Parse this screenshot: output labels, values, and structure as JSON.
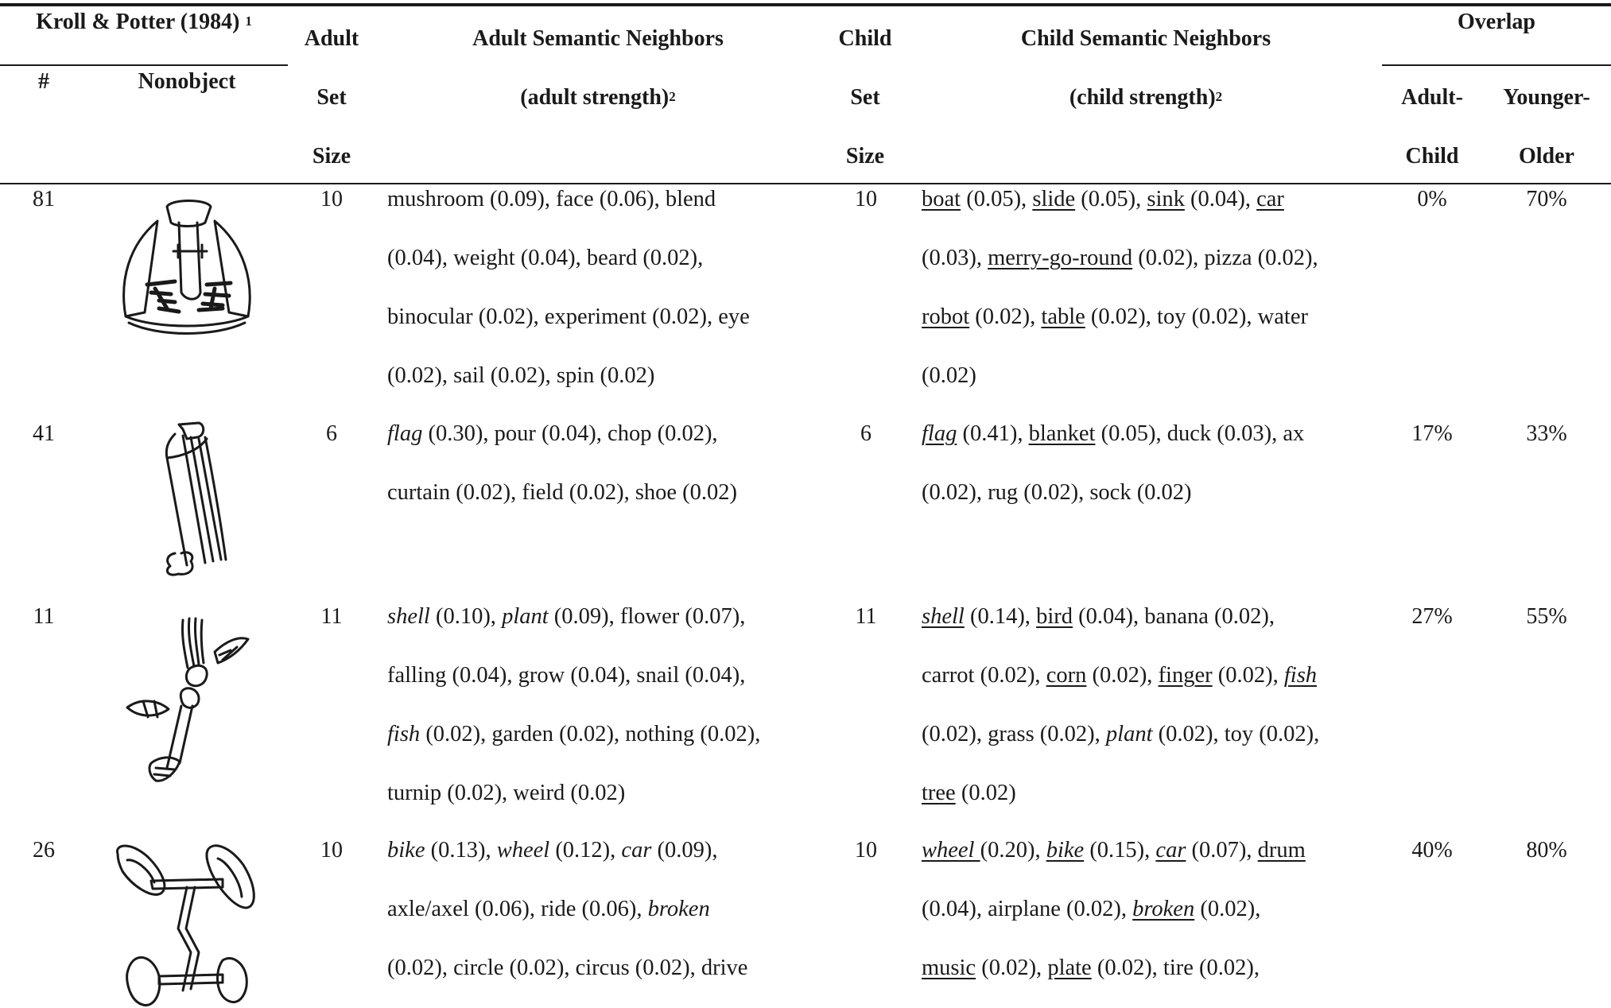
{
  "header": {
    "group_label": "Kroll & Potter (1984)",
    "group_note": "1",
    "num": "#",
    "nonobject": "Nonobject",
    "adult_set_1": "Adult",
    "adult_set_2": "Set",
    "adult_set_3": "Size",
    "adult_neighbors_1": "Adult Semantic Neighbors",
    "adult_neighbors_2": "(adult strength)",
    "adult_neighbors_note": "2",
    "child_set_1": "Child",
    "child_set_2": "Set",
    "child_set_3": "Size",
    "child_neighbors_1": "Child Semantic Neighbors",
    "child_neighbors_2": "(child strength)",
    "child_neighbors_note": "2",
    "overlap": "Overlap",
    "adult_child_1": "Adult-",
    "adult_child_2": "Child",
    "younger_older_1": "Younger-",
    "younger_older_2": "Older"
  },
  "rows": [
    {
      "num": "81",
      "image": "nonobject-81-drawing",
      "adult_set": "10",
      "child_set": "10",
      "overlap_ac": "0%",
      "overlap_yo": "70%",
      "adult_lines": [
        [
          {
            "t": "mushroom (0.09), face (0.06), blend"
          }
        ],
        [
          {
            "t": "(0.04), weight (0.04), beard (0.02),"
          }
        ],
        [
          {
            "t": "binocular (0.02), experiment (0.02), eye"
          }
        ],
        [
          {
            "t": "(0.02), sail (0.02), spin (0.02)"
          }
        ]
      ],
      "child_lines": [
        [
          {
            "t": "boat",
            "u": true
          },
          {
            "t": " (0.05), "
          },
          {
            "t": "slide",
            "u": true
          },
          {
            "t": " (0.05), "
          },
          {
            "t": "sink",
            "u": true
          },
          {
            "t": " (0.04), "
          },
          {
            "t": "car",
            "u": true
          }
        ],
        [
          {
            "t": "(0.03), "
          },
          {
            "t": "merry-go-round",
            "u": true
          },
          {
            "t": " (0.02), pizza (0.02),"
          }
        ],
        [
          {
            "t": "robot",
            "u": true
          },
          {
            "t": " (0.02), "
          },
          {
            "t": "table",
            "u": true
          },
          {
            "t": " (0.02), toy (0.02), water"
          }
        ],
        [
          {
            "t": "(0.02)"
          }
        ]
      ]
    },
    {
      "num": "41",
      "image": "nonobject-41-drawing",
      "adult_set": "6",
      "child_set": "6",
      "overlap_ac": "17%",
      "overlap_yo": "33%",
      "adult_lines": [
        [
          {
            "t": "flag",
            "i": true
          },
          {
            "t": " (0.30), pour (0.04), chop (0.02),"
          }
        ],
        [
          {
            "t": "curtain (0.02), field (0.02), shoe (0.02)"
          }
        ]
      ],
      "child_lines": [
        [
          {
            "t": "flag",
            "u": true,
            "i": true
          },
          {
            "t": " (0.41), "
          },
          {
            "t": "blanket",
            "u": true
          },
          {
            "t": " (0.05), duck (0.03), ax"
          }
        ],
        [
          {
            "t": "(0.02), rug (0.02), sock (0.02)"
          }
        ]
      ]
    },
    {
      "num": "11",
      "image": "nonobject-11-drawing",
      "adult_set": "11",
      "child_set": "11",
      "overlap_ac": "27%",
      "overlap_yo": "55%",
      "adult_lines": [
        [
          {
            "t": "shell",
            "i": true
          },
          {
            "t": " (0.10), "
          },
          {
            "t": "plant",
            "i": true
          },
          {
            "t": " (0.09), flower (0.07),"
          }
        ],
        [
          {
            "t": "falling (0.04), grow (0.04), snail (0.04),"
          }
        ],
        [
          {
            "t": "fish",
            "i": true
          },
          {
            "t": " (0.02), garden (0.02), nothing (0.02),"
          }
        ],
        [
          {
            "t": "turnip (0.02), weird (0.02)"
          }
        ]
      ],
      "child_lines": [
        [
          {
            "t": "shell",
            "u": true,
            "i": true
          },
          {
            "t": " (0.14), "
          },
          {
            "t": "bird",
            "u": true
          },
          {
            "t": " (0.04), banana (0.02),"
          }
        ],
        [
          {
            "t": "carrot (0.02), "
          },
          {
            "t": "corn",
            "u": true
          },
          {
            "t": " (0.02), "
          },
          {
            "t": "finger",
            "u": true
          },
          {
            "t": " (0.02), "
          },
          {
            "t": "fish",
            "u": true,
            "i": true
          }
        ],
        [
          {
            "t": "(0.02), grass (0.02), "
          },
          {
            "t": "plant",
            "i": true
          },
          {
            "t": " (0.02), toy (0.02),"
          }
        ],
        [
          {
            "t": "tree",
            "u": true
          },
          {
            "t": " (0.02)"
          }
        ]
      ]
    },
    {
      "num": "26",
      "image": "nonobject-26-drawing",
      "adult_set": "10",
      "child_set": "10",
      "overlap_ac": "40%",
      "overlap_yo": "80%",
      "adult_lines": [
        [
          {
            "t": "bike",
            "i": true
          },
          {
            "t": " (0.13), "
          },
          {
            "t": "wheel",
            "i": true
          },
          {
            "t": " (0.12), "
          },
          {
            "t": "car",
            "i": true
          },
          {
            "t": " (0.09),"
          }
        ],
        [
          {
            "t": "axle/axel (0.06), ride (0.06), "
          },
          {
            "t": "broken",
            "i": true
          }
        ],
        [
          {
            "t": "(0.02), circle (0.02), circus (0.02), drive"
          }
        ]
      ],
      "child_lines": [
        [
          {
            "t": "wheel ",
            "u": true,
            "i": true
          },
          {
            "t": "(0.20), "
          },
          {
            "t": "bike",
            "u": true,
            "i": true
          },
          {
            "t": " (0.15), "
          },
          {
            "t": "car",
            "u": true,
            "i": true
          },
          {
            "t": " (0.07), "
          },
          {
            "t": "drum",
            "u": true
          }
        ],
        [
          {
            "t": "(0.04), airplane (0.02), "
          },
          {
            "t": "broken",
            "u": true,
            "i": true
          },
          {
            "t": " (0.02),"
          }
        ],
        [
          {
            "t": "music",
            "u": true
          },
          {
            "t": " (0.02), "
          },
          {
            "t": "plate",
            "u": true
          },
          {
            "t": " (0.02), tire (0.02),"
          }
        ]
      ]
    }
  ]
}
